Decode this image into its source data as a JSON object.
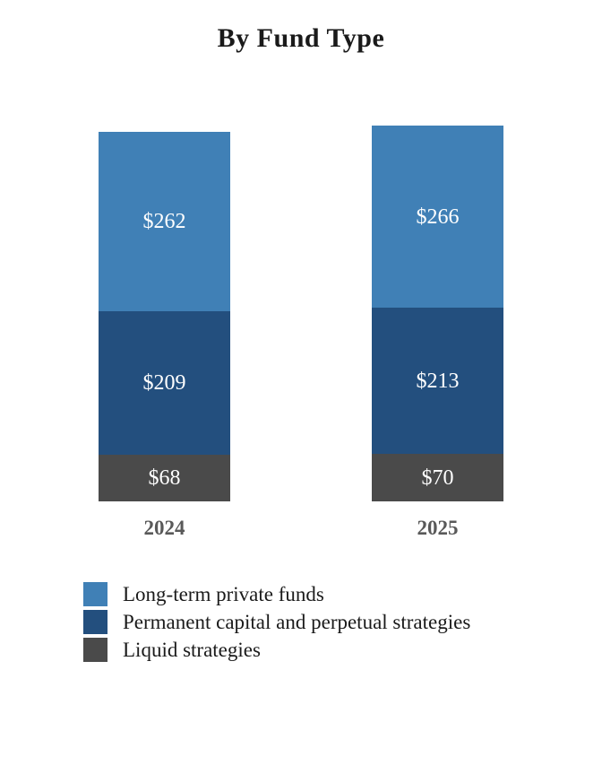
{
  "chart_data": {
    "type": "bar",
    "stacked": true,
    "title": "By Fund Type",
    "categories": [
      "2024",
      "2025"
    ],
    "series": [
      {
        "name": "Long-term private funds",
        "color": "#4080B6",
        "values": [
          262,
          266
        ],
        "labels": [
          "$262",
          "$266"
        ]
      },
      {
        "name": "Permanent capital and perpetual strategies",
        "color": "#234F7E",
        "values": [
          209,
          213
        ],
        "labels": [
          "$209",
          "$213"
        ]
      },
      {
        "name": "Liquid strategies",
        "color": "#4A4A4A",
        "values": [
          68,
          70
        ],
        "labels": [
          "$68",
          "$70"
        ]
      }
    ],
    "totals": [
      539,
      549
    ],
    "value_prefix": "$",
    "xlabel": "",
    "ylabel": "",
    "axes_visible": false,
    "gridlines": false,
    "legend_position": "bottom-left",
    "data_label_color": "#ffffff",
    "year_label_color": "#595959",
    "title_color": "#1a1a1a"
  }
}
